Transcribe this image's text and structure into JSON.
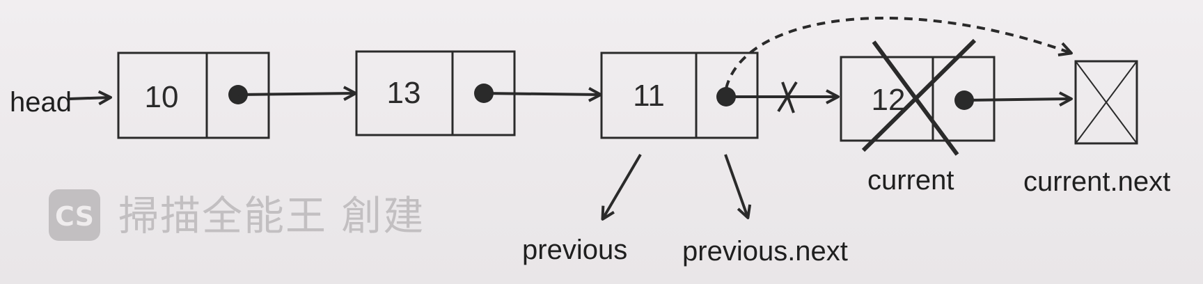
{
  "head_label": "head",
  "nodes": [
    {
      "value": "10"
    },
    {
      "value": "13"
    },
    {
      "value": "11"
    },
    {
      "value": "12"
    }
  ],
  "labels": {
    "previous": "previous",
    "previous_next": "previous.next",
    "current": "current",
    "current_next": "current.next"
  },
  "watermark": {
    "badge": "CS",
    "text": "掃描全能王 創建"
  },
  "colors": {
    "ink": "#2a2a2a",
    "background": "#efeced",
    "watermark": "#c2bfc1"
  }
}
